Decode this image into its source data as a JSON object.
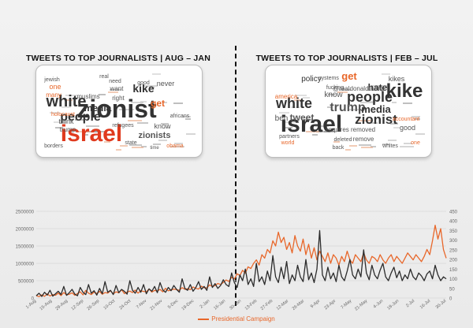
{
  "left_panel": {
    "title": "TWEETS TO TOP JOURNALISTS | AUG – JAN",
    "words": [
      {
        "text": "zionist",
        "color": "#333333",
        "weight": 5
      },
      {
        "text": "israel",
        "color": "#e03a1e",
        "weight": 5
      },
      {
        "text": "white",
        "color": "#333333",
        "weight": 3
      },
      {
        "text": "people",
        "color": "#333333",
        "weight": 3
      },
      {
        "text": "kike",
        "color": "#333333",
        "weight": 2
      },
      {
        "text": "zionists",
        "color": "#555555",
        "weight": 2
      },
      {
        "text": "get",
        "color": "#e8672a",
        "weight": 2
      },
      {
        "text": "media",
        "color": "#333333",
        "weight": 2
      },
      {
        "text": "know",
        "color": "#555555",
        "weight": 1
      },
      {
        "text": "never",
        "color": "#555555",
        "weight": 1
      },
      {
        "text": "muslims",
        "color": "#555555",
        "weight": 1
      },
      {
        "text": "trump",
        "color": "#555555",
        "weight": 1
      },
      {
        "text": "think",
        "color": "#555555",
        "weight": 1
      },
      {
        "text": "right",
        "color": "#555555",
        "weight": 1
      },
      {
        "text": "one",
        "color": "#e8672a",
        "weight": 1
      },
      {
        "text": "many",
        "color": "#e8672a",
        "weight": 1
      },
      {
        "text": "refugees",
        "color": "#555555",
        "weight": 1
      },
      {
        "text": "obama",
        "color": "#e8672a",
        "weight": 1
      },
      {
        "text": "holocaust",
        "color": "#e8672a",
        "weight": 1
      },
      {
        "text": "jewish",
        "color": "#555555",
        "weight": 1
      },
      {
        "text": "africans",
        "color": "#555555",
        "weight": 1
      },
      {
        "text": "borders",
        "color": "#555555",
        "weight": 1
      },
      {
        "text": "state",
        "color": "#555555",
        "weight": 1
      },
      {
        "text": "good",
        "color": "#555555",
        "weight": 1
      },
      {
        "text": "real",
        "color": "#555555",
        "weight": 1
      },
      {
        "text": "want",
        "color": "#555555",
        "weight": 1
      },
      {
        "text": "need",
        "color": "#555555",
        "weight": 1
      },
      {
        "text": "time",
        "color": "#555555",
        "weight": 1
      }
    ]
  },
  "right_panel": {
    "title": "TWEETS TO TOP JOURNALISTS | FEB – JUL",
    "words": [
      {
        "text": "kike",
        "color": "#333333",
        "weight": 5
      },
      {
        "text": "israel",
        "color": "#333333",
        "weight": 5
      },
      {
        "text": "white",
        "color": "#333333",
        "weight": 3
      },
      {
        "text": "people",
        "color": "#333333",
        "weight": 3
      },
      {
        "text": "trump",
        "color": "#555555",
        "weight": 3
      },
      {
        "text": "zionist",
        "color": "#333333",
        "weight": 3
      },
      {
        "text": "media",
        "color": "#333333",
        "weight": 2
      },
      {
        "text": "tweet",
        "color": "#555555",
        "weight": 2
      },
      {
        "text": "hate",
        "color": "#333333",
        "weight": 2
      },
      {
        "text": "get",
        "color": "#e8672a",
        "weight": 2
      },
      {
        "text": "policy",
        "color": "#333333",
        "weight": 1
      },
      {
        "text": "kikes",
        "color": "#555555",
        "weight": 1
      },
      {
        "text": "@realdonaldtrump",
        "color": "#555555",
        "weight": 1
      },
      {
        "text": "know",
        "color": "#555555",
        "weight": 1
      },
      {
        "text": "america",
        "color": "#e8672a",
        "weight": 1
      },
      {
        "text": "ben",
        "color": "#555555",
        "weight": 1
      },
      {
        "text": "requires removed",
        "color": "#555555",
        "weight": 1
      },
      {
        "text": "remove",
        "color": "#555555",
        "weight": 1
      },
      {
        "text": "deleted",
        "color": "#555555",
        "weight": 1
      },
      {
        "text": "good",
        "color": "#555555",
        "weight": 1
      },
      {
        "text": "fucking",
        "color": "#555555",
        "weight": 1
      },
      {
        "text": "systems",
        "color": "#555555",
        "weight": 1
      },
      {
        "text": "whites",
        "color": "#555555",
        "weight": 1
      },
      {
        "text": "partners",
        "color": "#555555",
        "weight": 1
      },
      {
        "text": "world",
        "color": "#e8672a",
        "weight": 1
      },
      {
        "text": "back",
        "color": "#555555",
        "weight": 1
      },
      {
        "text": "one",
        "color": "#e8672a",
        "weight": 1
      },
      {
        "text": "accountant",
        "color": "#e8672a",
        "weight": 1
      }
    ]
  },
  "chart_data": {
    "type": "line",
    "x_ticks": [
      "1-Aug",
      "15-Aug",
      "29-Aug",
      "12-Sep",
      "26-Sep",
      "10-Oct",
      "24-Oct",
      "7-Nov",
      "21-Nov",
      "5-Dec",
      "19-Dec",
      "2-Jan",
      "16-Jan",
      "30-Jan",
      "13-Feb",
      "27-Feb",
      "12-Mar",
      "26-Mar",
      "9-Apr",
      "23-Apr",
      "7-May",
      "21-May",
      "4-Jun",
      "18-Jun",
      "2-Jul",
      "16-Jul",
      "30-Jul"
    ],
    "y_left_ticks": [
      "0",
      "500000",
      "1000000",
      "1500000",
      "2000000",
      "2500000"
    ],
    "y_right_ticks": [
      "0",
      "50",
      "100",
      "150",
      "200",
      "250",
      "300",
      "350",
      "400",
      "450"
    ],
    "ylim_left": [
      0,
      2500000
    ],
    "ylim_right": [
      0,
      450
    ],
    "grid": true,
    "legend_position": "bottom-center",
    "series": [
      {
        "name": "Presidential Campaign",
        "axis": "left",
        "color": "#e8672a",
        "values": [
          70000,
          40000,
          90000,
          50000,
          120000,
          60000,
          100000,
          80000,
          140000,
          70000,
          160000,
          90000,
          110000,
          150000,
          80000,
          130000,
          180000,
          90000,
          220000,
          140000,
          100000,
          170000,
          130000,
          190000,
          110000,
          160000,
          140000,
          210000,
          120000,
          180000,
          150000,
          240000,
          130000,
          170000,
          200000,
          160000,
          230000,
          140000,
          210000,
          190000,
          180000,
          260000,
          170000,
          220000,
          200000,
          250000,
          180000,
          280000,
          210000,
          230000,
          260000,
          240000,
          220000,
          300000,
          250000,
          270000,
          240000,
          320000,
          280000,
          260000,
          340000,
          300000,
          290000,
          380000,
          330000,
          360000,
          420000,
          390000,
          450000,
          520000,
          480000,
          600000,
          550000,
          700000,
          650000,
          800000,
          720000,
          900000,
          850000,
          1000000,
          1100000,
          950000,
          1250000,
          1150000,
          1400000,
          1300000,
          1650000,
          1500000,
          1900000,
          1600000,
          1750000,
          1400000,
          1600000,
          1300000,
          1800000,
          1500000,
          1350000,
          1700000,
          1250000,
          1550000,
          1150000,
          1450000,
          1100000,
          1350000,
          1200000,
          1050000,
          1300000,
          1000000,
          1250000,
          1150000,
          950000,
          1200000,
          1050000,
          1350000,
          1100000,
          1000000,
          1250000,
          1150000,
          1050000,
          1300000,
          1100000,
          1000000,
          1200000,
          1150000,
          1050000,
          1250000,
          1100000,
          1000000,
          1150000,
          1250000,
          1050000,
          1200000,
          1100000,
          1000000,
          1150000,
          1300000,
          1200000,
          1100000,
          1250000,
          1150000,
          1050000,
          1200000,
          1400000,
          1250000,
          1650000,
          2100000,
          1700000,
          2000000,
          1400000,
          1150000
        ]
      },
      {
        "name": "",
        "axis": "right",
        "color": "#2b2b2b",
        "values": [
          12,
          25,
          8,
          30,
          15,
          40,
          10,
          22,
          35,
          18,
          60,
          14,
          28,
          45,
          20,
          12,
          55,
          30,
          18,
          70,
          25,
          38,
          15,
          50,
          22,
          85,
          30,
          40,
          18,
          65,
          28,
          45,
          35,
          20,
          90,
          40,
          25,
          55,
          30,
          70,
          22,
          48,
          35,
          60,
          28,
          80,
          42,
          30,
          55,
          38,
          65,
          45,
          30,
          100,
          50,
          40,
          70,
          35,
          55,
          85,
          45,
          60,
          40,
          110,
          55,
          75,
          50,
          65,
          95,
          70,
          60,
          130,
          80,
          55,
          120,
          90,
          150,
          70,
          100,
          60,
          180,
          85,
          110,
          70,
          140,
          90,
          220,
          110,
          80,
          160,
          100,
          190,
          75,
          120,
          90,
          170,
          110,
          85,
          200,
          95,
          130,
          80,
          150,
          350,
          120,
          90,
          160,
          100,
          130,
          85,
          170,
          110,
          90,
          140,
          200,
          120,
          100,
          150,
          110,
          250,
          130,
          95,
          170,
          120,
          100,
          145,
          180,
          110,
          90,
          130,
          160,
          105,
          140,
          90,
          120,
          100,
          150,
          110,
          95,
          130,
          115,
          90,
          125,
          140,
          100,
          170,
          120,
          90,
          110,
          100
        ]
      }
    ]
  }
}
